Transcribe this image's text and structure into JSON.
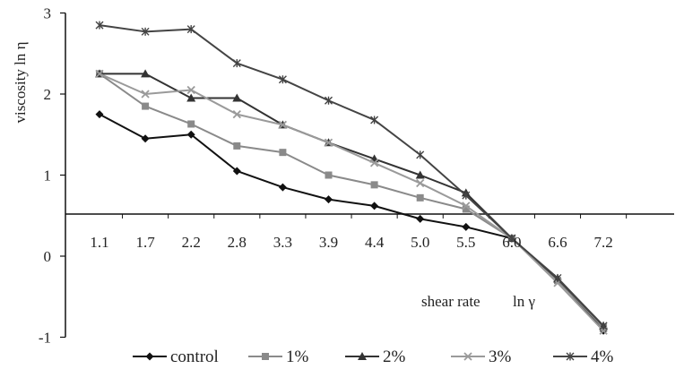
{
  "chart_data": {
    "type": "line",
    "title": "",
    "xlabel": "shear rate",
    "xlabel_unit": "ln γ",
    "ylabel": "viscosity ln η",
    "categories": [
      "1.1",
      "1.7",
      "2.2",
      "2.8",
      "3.3",
      "3.9",
      "4.4",
      "5.0",
      "5.5",
      "6.0",
      "6.6",
      "7.2"
    ],
    "y_ticks": [
      "-1",
      "0",
      "1",
      "2",
      "3"
    ],
    "ylim": [
      -1,
      3
    ],
    "x_axis_crosses_y_at": 0.52,
    "grid": false,
    "legend_position": "bottom",
    "series": [
      {
        "name": "control",
        "color": "#111111",
        "marker": "diamond",
        "values": [
          1.75,
          1.45,
          1.5,
          1.05,
          0.85,
          0.7,
          0.62,
          0.46,
          0.36,
          0.22,
          -0.28,
          -0.92
        ]
      },
      {
        "name": "1%",
        "color": "#8a8a8a",
        "marker": "square",
        "values": [
          2.25,
          1.85,
          1.63,
          1.36,
          1.28,
          1.0,
          0.88,
          0.72,
          0.58,
          0.22,
          -0.3,
          -0.88
        ]
      },
      {
        "name": "2%",
        "color": "#333333",
        "marker": "triangle",
        "values": [
          2.25,
          2.25,
          1.95,
          1.95,
          1.62,
          1.4,
          1.2,
          1.0,
          0.78,
          0.22,
          -0.28,
          -0.86
        ]
      },
      {
        "name": "3%",
        "color": "#9a9a9a",
        "marker": "x",
        "values": [
          2.25,
          2.0,
          2.05,
          1.75,
          1.62,
          1.4,
          1.15,
          0.9,
          0.62,
          0.22,
          -0.33,
          -0.92
        ]
      },
      {
        "name": "4%",
        "color": "#444444",
        "marker": "star",
        "values": [
          2.85,
          2.77,
          2.8,
          2.38,
          2.18,
          1.92,
          1.68,
          1.25,
          0.75,
          0.22,
          -0.27,
          -0.86
        ]
      }
    ]
  }
}
